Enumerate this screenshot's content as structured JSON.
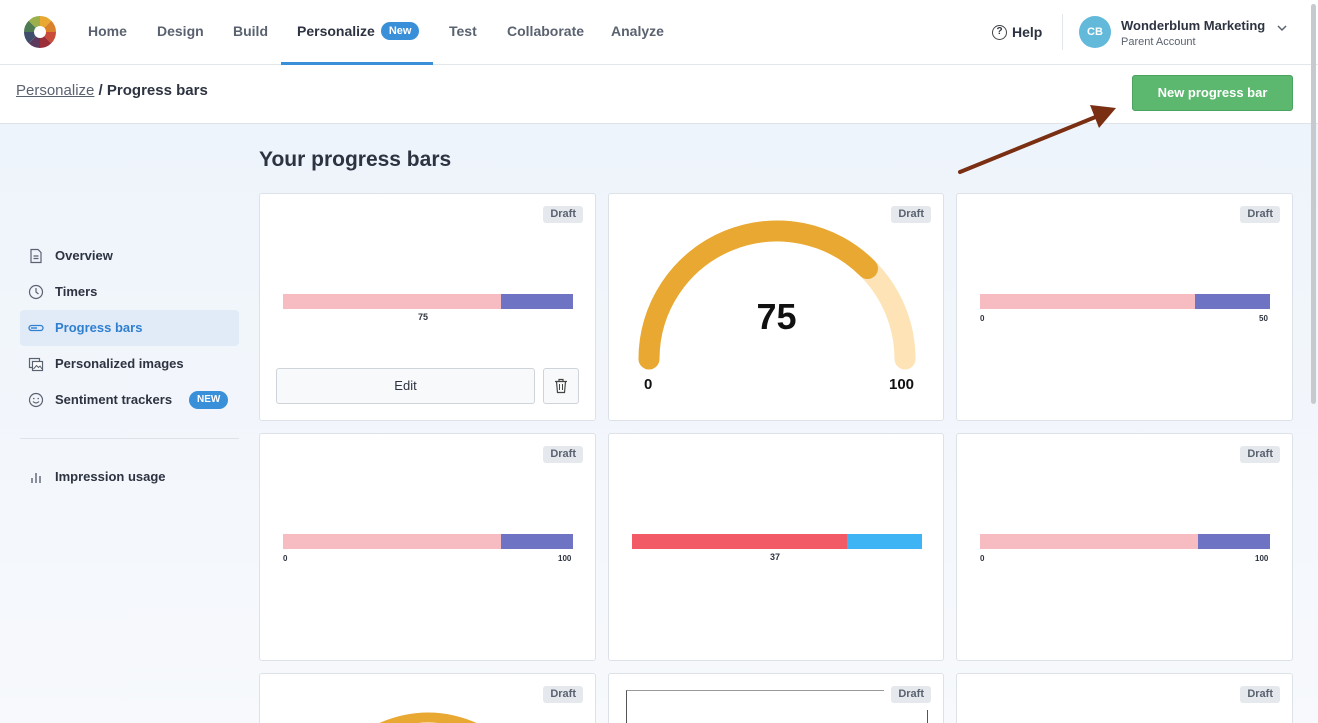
{
  "nav": {
    "items": [
      {
        "label": "Home"
      },
      {
        "label": "Design"
      },
      {
        "label": "Build"
      },
      {
        "label": "Personalize",
        "badge": "New"
      },
      {
        "label": "Test"
      },
      {
        "label": "Collaborate"
      },
      {
        "label": "Analyze"
      }
    ],
    "active": "Personalize",
    "help_label": "Help",
    "account": {
      "initials": "CB",
      "name": "Wonderblum Marketing",
      "sub": "Parent Account"
    }
  },
  "breadcrumb": {
    "parent": "Personalize",
    "separator": " / ",
    "current": "Progress bars"
  },
  "new_button_label": "New progress bar",
  "sidebar": {
    "items": [
      {
        "label": "Overview",
        "icon": "document-icon"
      },
      {
        "label": "Timers",
        "icon": "clock-icon"
      },
      {
        "label": "Progress bars",
        "icon": "progress-bar-icon",
        "active": true
      },
      {
        "label": "Personalized images",
        "icon": "image-icon"
      },
      {
        "label": "Sentiment trackers",
        "icon": "smiley-icon",
        "badge": "NEW"
      }
    ],
    "usage": {
      "label": "Impression usage",
      "icon": "bar-chart-icon"
    }
  },
  "page_title": "Your progress bars",
  "cards": [
    {
      "status": "Draft",
      "type": "bar",
      "fill": 0.75,
      "label": "75",
      "colors": [
        "#f7bcc2",
        "#6f73c4"
      ],
      "edit_label": "Edit"
    },
    {
      "status": "Draft",
      "type": "gauge",
      "value": "75",
      "fill": 0.75,
      "min": "0",
      "max": "100",
      "colors": [
        "#e8a831",
        "#fde3b5"
      ]
    },
    {
      "status": "Draft",
      "type": "bar",
      "fill": 0.74,
      "min": "0",
      "max": "50",
      "colors": [
        "#f7bcc2",
        "#6f73c4"
      ]
    },
    {
      "status": "Draft",
      "type": "bar",
      "fill": 0.75,
      "min": "0",
      "max": "100",
      "colors": [
        "#f7bcc2",
        "#6f73c4"
      ]
    },
    {
      "status": "",
      "type": "bar",
      "fill": 0.74,
      "label": "37",
      "colors": [
        "#f25a66",
        "#3fb4f5"
      ]
    },
    {
      "status": "Draft",
      "type": "bar",
      "fill": 0.75,
      "min": "0",
      "max": "100",
      "colors": [
        "#f7bcc2",
        "#6f73c4"
      ]
    },
    {
      "status": "Draft",
      "type": "gauge-partial"
    },
    {
      "status": "Draft",
      "type": "frame"
    },
    {
      "status": "Draft",
      "type": "blank"
    }
  ],
  "colors": {
    "accent": "#3a8fd9",
    "primary_button": "#5cb76f",
    "annotation_arrow": "#7a2e12"
  }
}
